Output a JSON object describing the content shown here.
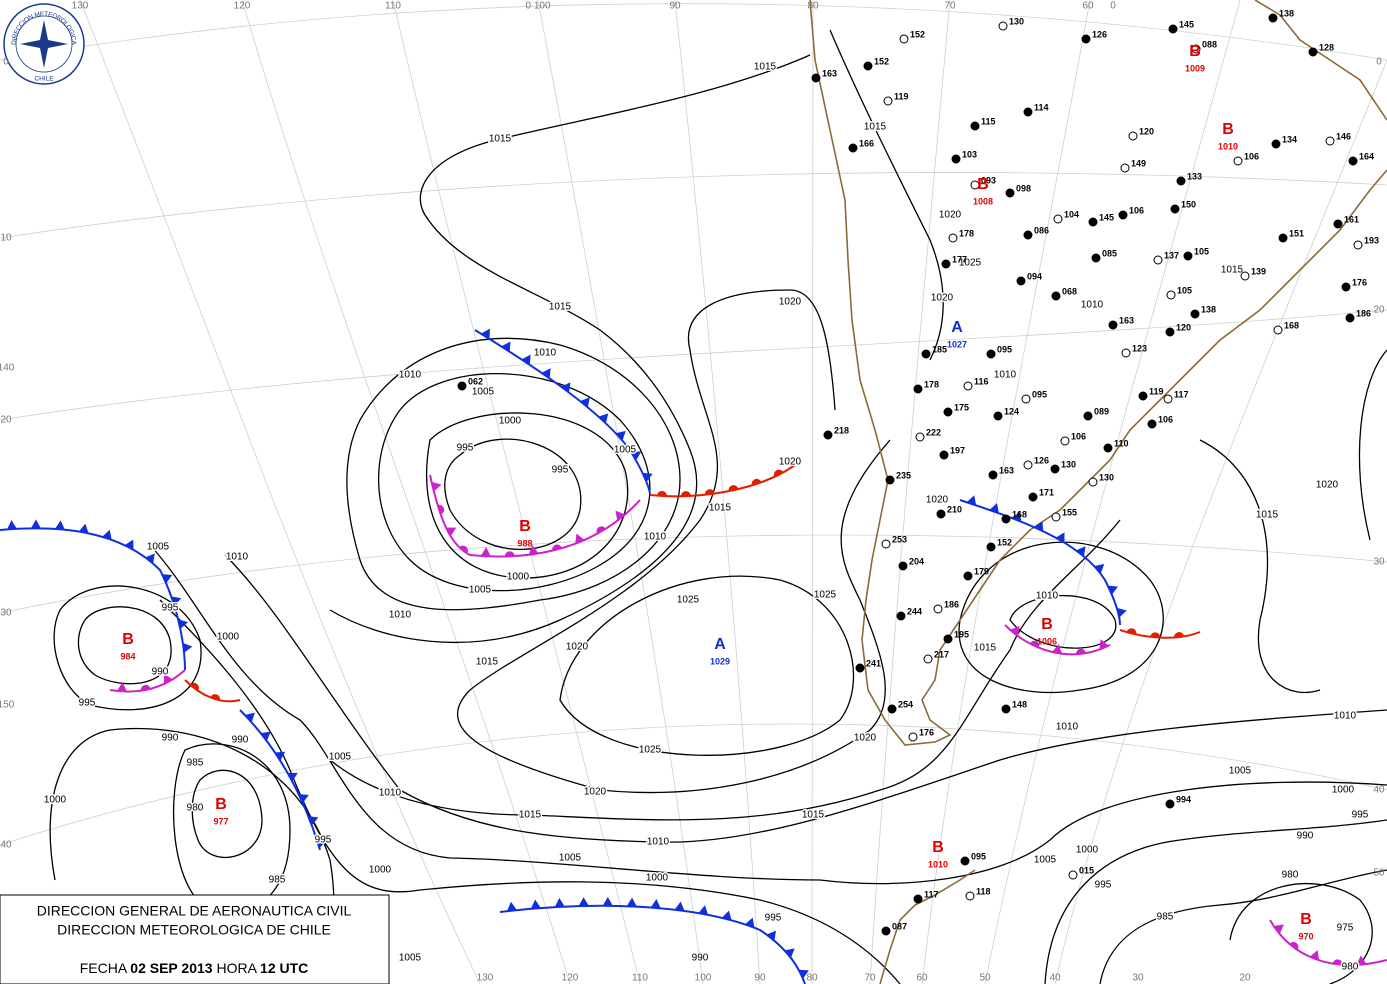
{
  "logo": {
    "top": "DIRECCION METEOROLOGICA",
    "bottom": "CHILE"
  },
  "info_box": {
    "line1": "DIRECCION GENERAL DE AERONAUTICA CIVIL",
    "line2": "DIRECCION METEOROLOGICA DE CHILE",
    "date_label": "FECHA",
    "date": "02 SEP 2013",
    "time_label": "HORA",
    "time": "12 UTC"
  },
  "longitude_labels_top": [
    "130",
    "120",
    "110",
    "0 100",
    "90",
    "80",
    "70",
    "60",
    "0"
  ],
  "longitude_labels_bottom": [
    "130",
    "120",
    "110",
    "100",
    "90",
    "80",
    "70",
    "60",
    "50",
    "40",
    "30",
    "20"
  ],
  "latitude_labels_left": [
    "0",
    "10",
    "140",
    "20",
    "30",
    "150",
    "40"
  ],
  "latitude_labels_right": [
    "0",
    "20",
    "30",
    "40",
    "50"
  ],
  "pressure_centers": [
    {
      "letter": "B",
      "value": "988",
      "color": "#e00000"
    },
    {
      "letter": "B",
      "value": "984",
      "color": "#e00000"
    },
    {
      "letter": "B",
      "value": "977",
      "color": "#e00000"
    },
    {
      "letter": "A",
      "value": "1027",
      "color": "#1030d0"
    },
    {
      "letter": "A",
      "value": "1029",
      "color": "#1030d0"
    },
    {
      "letter": "B",
      "value": "1006",
      "color": "#e00000"
    },
    {
      "letter": "B",
      "value": "970",
      "color": "#e00000"
    },
    {
      "letter": "B",
      "value": "1010",
      "color": "#e00000"
    },
    {
      "letter": "B",
      "value": "1008",
      "color": "#e00000"
    },
    {
      "letter": "B",
      "value": "1009",
      "color": "#e00000"
    },
    {
      "letter": "B",
      "value": "1010",
      "color": "#e00000"
    }
  ],
  "isobar_labels": [
    "1015",
    "1015",
    "1015",
    "1020",
    "1010",
    "1010",
    "1005",
    "1000",
    "995",
    "995",
    "1005",
    "1020",
    "1015",
    "1010",
    "1000",
    "1005",
    "1010",
    "1015",
    "1020",
    "1025",
    "1025",
    "1020",
    "1025",
    "1020",
    "1015",
    "1015",
    "1010",
    "1005",
    "1000",
    "995",
    "990",
    "1005",
    "1000",
    "1010",
    "1005",
    "1010",
    "1005",
    "995",
    "1000",
    "990",
    "995",
    "990",
    "990",
    "985",
    "980",
    "1000",
    "995",
    "985",
    "1015",
    "1010",
    "1010",
    "1005",
    "1000",
    "995",
    "990",
    "985",
    "980",
    "975",
    "980",
    "1010",
    "1000",
    "995",
    "1005",
    "1015",
    "1020",
    "1015",
    "1020",
    "1025",
    "1020",
    "1010",
    "1015",
    "1020",
    "1010"
  ],
  "stations": [
    {
      "label": "130"
    },
    {
      "label": "126"
    },
    {
      "label": "145"
    },
    {
      "label": "088"
    },
    {
      "label": "138"
    },
    {
      "label": "128"
    },
    {
      "label": "152"
    },
    {
      "label": "152"
    },
    {
      "label": "163"
    },
    {
      "label": "119"
    },
    {
      "label": "114"
    },
    {
      "label": "115"
    },
    {
      "label": "120"
    },
    {
      "label": "166"
    },
    {
      "label": "103"
    },
    {
      "label": "149"
    },
    {
      "label": "133"
    },
    {
      "label": "098"
    },
    {
      "label": "106"
    },
    {
      "label": "164"
    },
    {
      "label": "134"
    },
    {
      "label": "146"
    },
    {
      "label": "150"
    },
    {
      "label": "106"
    },
    {
      "label": "104"
    },
    {
      "label": "145"
    },
    {
      "label": "086"
    },
    {
      "label": "178"
    },
    {
      "label": "177"
    },
    {
      "label": "085"
    },
    {
      "label": "137"
    },
    {
      "label": "094"
    },
    {
      "label": "068"
    },
    {
      "label": "139"
    },
    {
      "label": "105"
    },
    {
      "label": "138"
    },
    {
      "label": "105"
    },
    {
      "label": "161"
    },
    {
      "label": "151"
    },
    {
      "label": "193"
    },
    {
      "label": "176"
    },
    {
      "label": "186"
    },
    {
      "label": "168"
    },
    {
      "label": "163"
    },
    {
      "label": "120"
    },
    {
      "label": "123"
    },
    {
      "label": "185"
    },
    {
      "label": "095"
    },
    {
      "label": "116"
    },
    {
      "label": "178"
    },
    {
      "label": "175"
    },
    {
      "label": "095"
    },
    {
      "label": "124"
    },
    {
      "label": "089"
    },
    {
      "label": "117"
    },
    {
      "label": "119"
    },
    {
      "label": "106"
    },
    {
      "label": "106"
    },
    {
      "label": "130"
    },
    {
      "label": "110"
    },
    {
      "label": "130"
    },
    {
      "label": "171"
    },
    {
      "label": "168"
    },
    {
      "label": "155"
    },
    {
      "label": "152"
    },
    {
      "label": "163"
    },
    {
      "label": "126"
    },
    {
      "label": "197"
    },
    {
      "label": "218",
      "color": "#e00000"
    },
    {
      "label": "222",
      "color": "#e00000"
    },
    {
      "label": "235",
      "color": "#e00000"
    },
    {
      "label": "210",
      "color": "#e00000"
    },
    {
      "label": "253",
      "color": "#e00000"
    },
    {
      "label": "204",
      "color": "#e00000"
    },
    {
      "label": "179"
    },
    {
      "label": "186"
    },
    {
      "label": "195"
    },
    {
      "label": "244",
      "color": "#e00000"
    },
    {
      "label": "217",
      "color": "#e00000"
    },
    {
      "label": "241",
      "color": "#e00000"
    },
    {
      "label": "254",
      "color": "#e00000"
    },
    {
      "label": "176"
    },
    {
      "label": "148"
    },
    {
      "label": "095"
    },
    {
      "label": "118"
    },
    {
      "label": "117"
    },
    {
      "label": "087"
    },
    {
      "label": "015"
    },
    {
      "label": "994"
    },
    {
      "label": "062"
    },
    {
      "label": "093",
      "color": "#e00000"
    }
  ]
}
